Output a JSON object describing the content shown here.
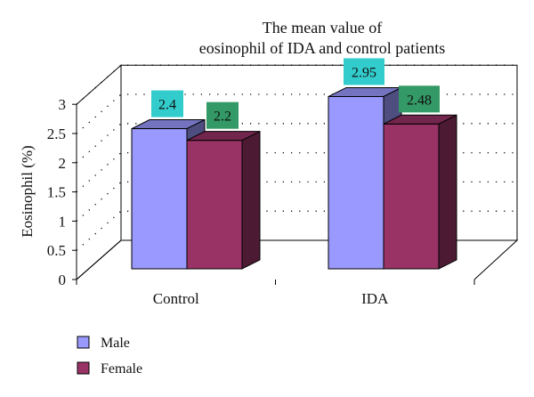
{
  "chart_data": {
    "type": "bar",
    "title_lines": [
      "The mean value of",
      "eosinophil of IDA and control patients"
    ],
    "xlabel": "",
    "ylabel": "Eosinophil (%)",
    "categories": [
      "Control",
      "IDA"
    ],
    "series": [
      {
        "name": "Male",
        "values": [
          2.4,
          2.95
        ],
        "color": "#9999FF",
        "label_color": "#33CCCC"
      },
      {
        "name": "Female",
        "values": [
          2.2,
          2.48
        ],
        "color": "#993366",
        "label_color": "#339966"
      }
    ],
    "data_labels": [
      [
        "2.4",
        "2.95"
      ],
      [
        "2.2",
        "2.48"
      ]
    ],
    "ylim": [
      0,
      3
    ],
    "yticks": [
      0,
      0.5,
      1,
      1.5,
      2,
      2.5,
      3
    ],
    "ytick_labels": [
      "0",
      "0.5",
      "1",
      "1.5",
      "2",
      "2.5",
      "3"
    ],
    "grid": true,
    "three_d": true,
    "legend_position": "bottom-left"
  }
}
